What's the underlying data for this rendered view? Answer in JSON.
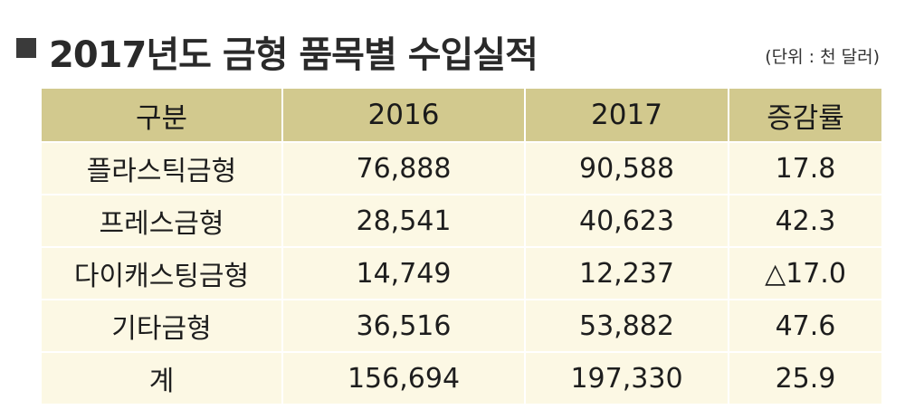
{
  "header": {
    "title": "2017년도 금형 품목별 수입실적",
    "unit": "(단위 : 천 달러)"
  },
  "table": {
    "columns": [
      "구분",
      "2016",
      "2017",
      "증감률"
    ],
    "rows": [
      [
        "플라스틱금형",
        "76,888",
        "90,588",
        "17.8"
      ],
      [
        "프레스금형",
        "28,541",
        "40,623",
        "42.3"
      ],
      [
        "다이캐스팅금형",
        "14,749",
        "12,237",
        "△17.0"
      ],
      [
        "기타금형",
        "36,516",
        "53,882",
        "47.6"
      ],
      [
        "계",
        "156,694",
        "197,330",
        "25.9"
      ]
    ]
  },
  "colors": {
    "header_fill": "#d2c98e",
    "body_fill": "#fcf8e4",
    "grid": "#ffffff"
  },
  "chart_data": {
    "type": "table",
    "title": "2017년도 금형 품목별 수입실적",
    "unit": "(단위 : 천 달러)",
    "columns": [
      "구분",
      "2016",
      "2017",
      "증감률"
    ],
    "categories": [
      "플라스틱금형",
      "프레스금형",
      "다이캐스팅금형",
      "기타금형",
      "계"
    ],
    "series": [
      {
        "name": "2016",
        "values": [
          76888,
          28541,
          14749,
          36516,
          156694
        ]
      },
      {
        "name": "2017",
        "values": [
          90588,
          40623,
          12237,
          53882,
          197330
        ]
      },
      {
        "name": "증감률",
        "values": [
          17.8,
          42.3,
          -17.0,
          47.6,
          25.9
        ]
      }
    ]
  }
}
